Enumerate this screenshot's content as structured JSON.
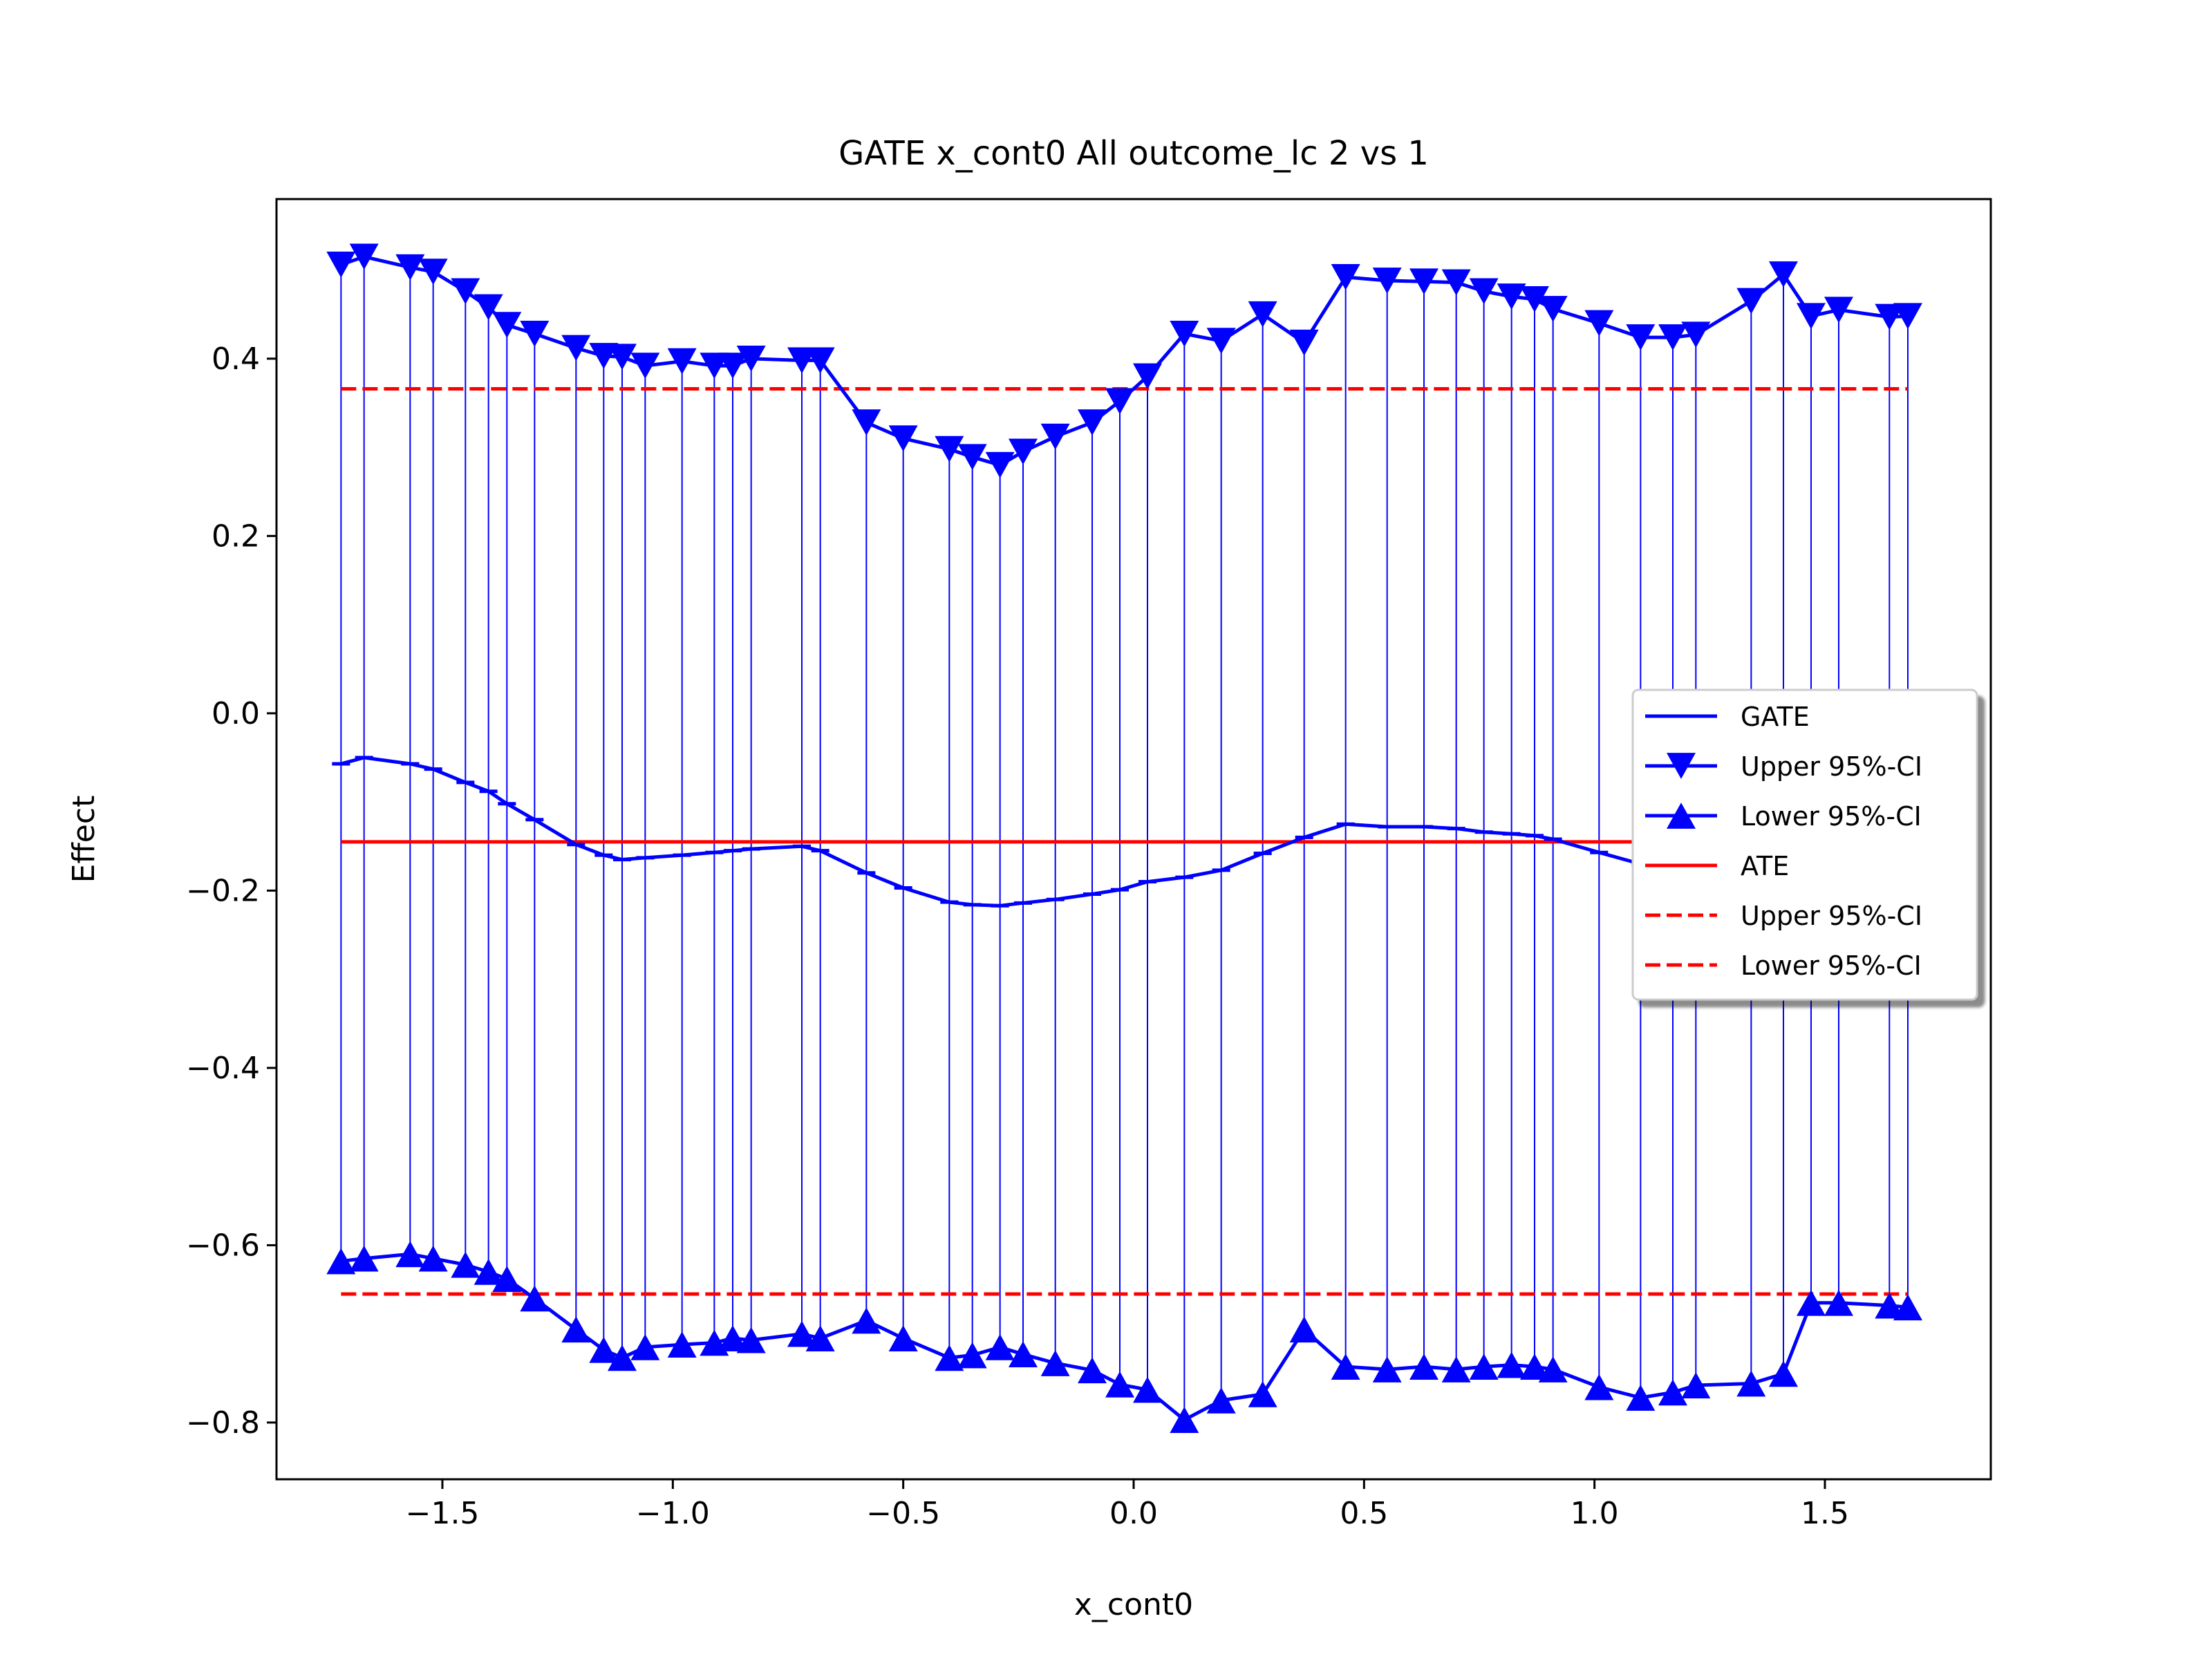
{
  "chart_data": {
    "type": "line",
    "title": "GATE x_cont0 All outcome_lc  2 vs 1",
    "xlabel": "x_cont0",
    "ylabel": "Effect",
    "xlim": [
      -1.86,
      1.86
    ],
    "ylim": [
      -0.864,
      0.58
    ],
    "xticks": [
      -1.5,
      -1.0,
      -0.5,
      0.0,
      0.5,
      1.0,
      1.5
    ],
    "xtick_labels": [
      "−1.5",
      "−1.0",
      "−0.5",
      "0.0",
      "0.5",
      "1.0",
      "1.5"
    ],
    "yticks": [
      -0.8,
      -0.6,
      -0.4,
      -0.2,
      0.0,
      0.2,
      0.4
    ],
    "ytick_labels": [
      "−0.8",
      "−0.6",
      "−0.4",
      "−0.2",
      "0.0",
      "0.2",
      "0.4"
    ],
    "legend_position": "center-right",
    "legend": [
      "GATE",
      "Upper 95%-CI",
      "Lower 95%-CI",
      "ATE",
      "Upper 95%-CI",
      "Lower 95%-CI"
    ],
    "x": [
      -1.72,
      -1.67,
      -1.57,
      -1.52,
      -1.45,
      -1.4,
      -1.36,
      -1.3,
      -1.21,
      -1.15,
      -1.11,
      -1.06,
      -0.98,
      -0.91,
      -0.87,
      -0.83,
      -0.72,
      -0.68,
      -0.58,
      -0.5,
      -0.4,
      -0.35,
      -0.29,
      -0.24,
      -0.17,
      -0.09,
      -0.03,
      0.03,
      0.11,
      0.19,
      0.28,
      0.37,
      0.46,
      0.55,
      0.63,
      0.7,
      0.76,
      0.82,
      0.87,
      0.91,
      1.01,
      1.1,
      1.17,
      1.22,
      1.34,
      1.41,
      1.47,
      1.53,
      1.64,
      1.68
    ],
    "series": [
      {
        "name": "GATE",
        "values": [
          -0.057,
          -0.05,
          -0.057,
          -0.063,
          -0.078,
          -0.088,
          -0.102,
          -0.12,
          -0.148,
          -0.16,
          -0.165,
          -0.163,
          -0.16,
          -0.157,
          -0.155,
          -0.153,
          -0.15,
          -0.155,
          -0.18,
          -0.197,
          -0.213,
          -0.216,
          -0.217,
          -0.214,
          -0.21,
          -0.204,
          -0.199,
          -0.19,
          -0.185,
          -0.177,
          -0.158,
          -0.14,
          -0.125,
          -0.128,
          -0.128,
          -0.13,
          -0.134,
          -0.136,
          -0.138,
          -0.142,
          -0.157,
          -0.17,
          -0.18,
          -0.185,
          -0.195,
          -0.203,
          -0.208,
          -0.212,
          -0.218,
          -0.22
        ]
      },
      {
        "name": "Upper 95%-CI",
        "values": [
          0.506,
          0.515,
          0.503,
          0.498,
          0.476,
          0.458,
          0.438,
          0.428,
          0.412,
          0.403,
          0.402,
          0.392,
          0.397,
          0.392,
          0.392,
          0.4,
          0.398,
          0.398,
          0.328,
          0.31,
          0.298,
          0.289,
          0.28,
          0.295,
          0.312,
          0.328,
          0.352,
          0.38,
          0.428,
          0.42,
          0.45,
          0.418,
          0.492,
          0.488,
          0.487,
          0.486,
          0.476,
          0.47,
          0.467,
          0.456,
          0.44,
          0.424,
          0.424,
          0.427,
          0.465,
          0.495,
          0.448,
          0.455,
          0.447,
          0.448
        ]
      },
      {
        "name": "Lower 95%-CI",
        "values": [
          -0.618,
          -0.615,
          -0.61,
          -0.615,
          -0.622,
          -0.63,
          -0.638,
          -0.66,
          -0.695,
          -0.718,
          -0.727,
          -0.715,
          -0.712,
          -0.71,
          -0.705,
          -0.707,
          -0.7,
          -0.705,
          -0.685,
          -0.705,
          -0.727,
          -0.724,
          -0.715,
          -0.723,
          -0.733,
          -0.741,
          -0.757,
          -0.763,
          -0.797,
          -0.775,
          -0.768,
          -0.695,
          -0.737,
          -0.74,
          -0.737,
          -0.74,
          -0.737,
          -0.735,
          -0.737,
          -0.74,
          -0.76,
          -0.772,
          -0.766,
          -0.758,
          -0.756,
          -0.745,
          -0.665,
          -0.665,
          -0.668,
          -0.67
        ]
      }
    ],
    "reference_lines": [
      {
        "name": "ATE",
        "value": -0.145,
        "style": "solid"
      },
      {
        "name": "Upper 95%-CI",
        "value": 0.366,
        "style": "dashed"
      },
      {
        "name": "Lower 95%-CI",
        "value": -0.655,
        "style": "dashed"
      }
    ],
    "colors": {
      "gate": "#0000ff",
      "ate": "#ff0000",
      "axis": "#000000",
      "legend_border": "#cccccc"
    }
  }
}
